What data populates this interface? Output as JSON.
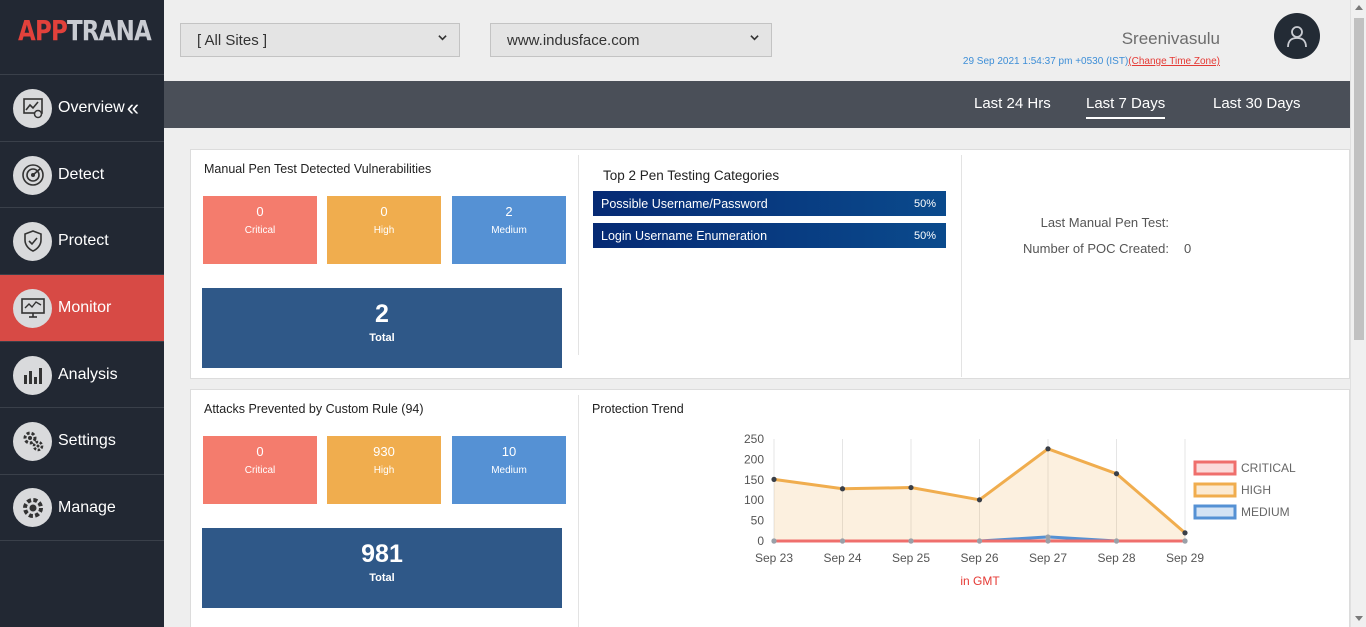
{
  "brand": {
    "part1": "APP",
    "part2": "TRANA"
  },
  "sidebar": {
    "items": [
      {
        "label": "Overview",
        "icon": "overview-icon"
      },
      {
        "label": "Detect",
        "icon": "radar-icon"
      },
      {
        "label": "Protect",
        "icon": "shield-icon"
      },
      {
        "label": "Monitor",
        "icon": "monitor-icon",
        "active": true
      },
      {
        "label": "Analysis",
        "icon": "bar-chart-icon"
      },
      {
        "label": "Settings",
        "icon": "gears-icon"
      },
      {
        "label": "Manage",
        "icon": "gear-icon"
      }
    ],
    "collapse_glyph": "«"
  },
  "header": {
    "site_select": "[ All Sites ]",
    "domain_select": "www.indusface.com",
    "username": "Sreenivasulu",
    "timestamp": "29 Sep 2021 1:54:37 pm +0530 (IST)",
    "change_tz": "(Change Time Zone)"
  },
  "time_tabs": [
    {
      "label": "Last 24 Hrs",
      "active": false
    },
    {
      "label": "Last 7 Days",
      "active": true
    },
    {
      "label": "Last 30 Days",
      "active": false
    }
  ],
  "pen_test": {
    "title": "Manual Pen Test Detected Vulnerabilities",
    "critical": {
      "value": "0",
      "label": "Critical"
    },
    "high": {
      "value": "0",
      "label": "High"
    },
    "medium": {
      "value": "2",
      "label": "Medium"
    },
    "total": {
      "value": "2",
      "label": "Total"
    }
  },
  "categories": {
    "title": "Top 2 Pen Testing Categories",
    "items": [
      {
        "name": "Possible Username/Password",
        "pct": "50%"
      },
      {
        "name": "Login Username Enumeration",
        "pct": "50%"
      }
    ]
  },
  "pen_info": {
    "last_label": "Last Manual Pen Test:",
    "last_value": "",
    "poc_label": "Number of POC Created:",
    "poc_value": "0"
  },
  "custom_rule": {
    "title": "Attacks Prevented by Custom Rule (94)",
    "critical": {
      "value": "0",
      "label": "Critical"
    },
    "high": {
      "value": "930",
      "label": "High"
    },
    "medium": {
      "value": "10",
      "label": "Medium"
    },
    "total": {
      "value": "981",
      "label": "Total"
    }
  },
  "trend": {
    "title": "Protection Trend",
    "footnote": "in GMT"
  },
  "chart_data": {
    "type": "area",
    "categories": [
      "Sep 23",
      "Sep 24",
      "Sep 25",
      "Sep 26",
      "Sep 27",
      "Sep 28",
      "Sep 29"
    ],
    "ylim": [
      0,
      250
    ],
    "yticks": [
      0,
      50,
      100,
      150,
      200,
      250
    ],
    "legend_position": "right",
    "series": [
      {
        "name": "CRITICAL",
        "color": "#ef6f6c",
        "values": [
          0,
          0,
          0,
          0,
          0,
          0,
          0
        ]
      },
      {
        "name": "HIGH",
        "color": "#f0ad4e",
        "values": [
          151,
          128,
          131,
          101,
          226,
          165,
          20
        ]
      },
      {
        "name": "MEDIUM",
        "color": "#5591d4",
        "values": [
          0,
          0,
          0,
          0,
          10,
          0,
          0
        ]
      }
    ]
  }
}
